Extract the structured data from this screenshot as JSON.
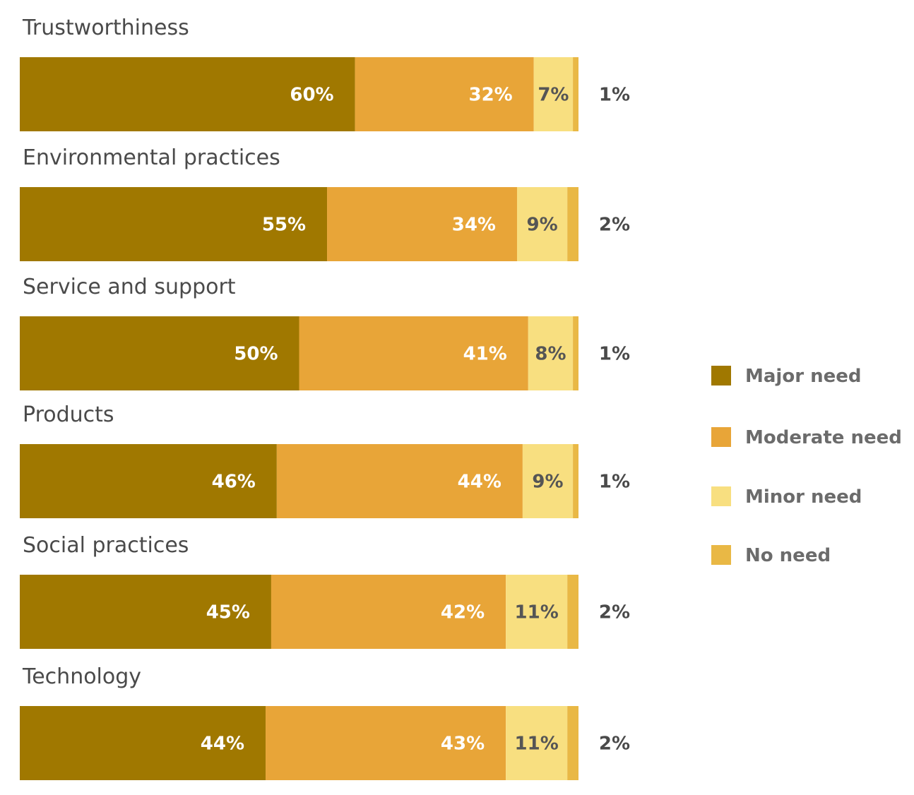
{
  "chart_data": {
    "type": "bar",
    "orientation": "horizontal",
    "stacked": true,
    "title": "",
    "xlabel": "",
    "ylabel": "",
    "xlim": [
      0,
      100
    ],
    "unit": "%",
    "legend_position": "right",
    "categories": [
      "Trustworthiness",
      "Environmental practices",
      "Service and support",
      "Products",
      "Social practices",
      "Technology"
    ],
    "series": [
      {
        "name": "Major need",
        "color": "#a07800",
        "label_color": "#ffffff",
        "values": [
          60,
          55,
          50,
          46,
          45,
          44
        ]
      },
      {
        "name": "Moderate need",
        "color": "#e8a538",
        "label_color": "#ffffff",
        "values": [
          32,
          34,
          41,
          44,
          42,
          43
        ]
      },
      {
        "name": "Minor need",
        "color": "#f8df80",
        "label_color": "#555555",
        "values": [
          7,
          9,
          8,
          9,
          11,
          11
        ]
      },
      {
        "name": "No need",
        "color": "#e9b845",
        "label_color": "#4a4a4a",
        "values": [
          1,
          2,
          1,
          1,
          2,
          2
        ]
      }
    ]
  }
}
